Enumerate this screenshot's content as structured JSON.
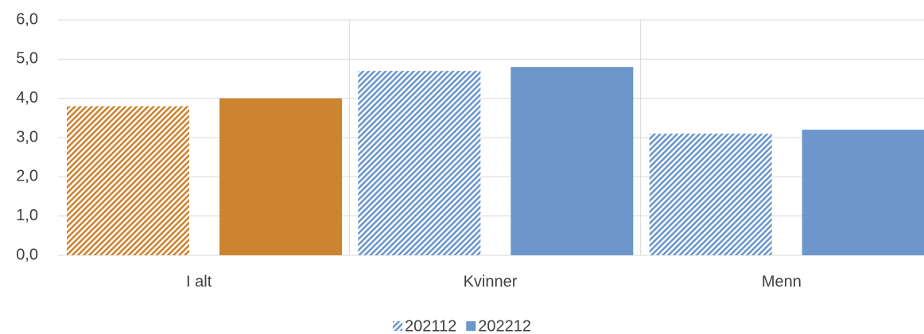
{
  "chart_data": {
    "type": "bar",
    "categories": [
      "I alt",
      "Kvinner",
      "Menn"
    ],
    "category_colors": [
      "#cc8431",
      "#6c96cc",
      "#6c96cc"
    ],
    "series": [
      {
        "name": "202112",
        "color": "#6c96cc",
        "pattern": "hatch",
        "values": [
          3.8,
          4.7,
          3.1
        ]
      },
      {
        "name": "202212",
        "color": "#6c96cc",
        "pattern": "solid",
        "values": [
          4.0,
          4.8,
          3.2
        ]
      }
    ],
    "ylim": [
      0,
      6
    ],
    "yticks": [
      {
        "value": 0,
        "label": "0,0"
      },
      {
        "value": 1,
        "label": "1,0"
      },
      {
        "value": 2,
        "label": "2,0"
      },
      {
        "value": 3,
        "label": "3,0"
      },
      {
        "value": 4,
        "label": "4,0"
      },
      {
        "value": 5,
        "label": "5,0"
      },
      {
        "value": 6,
        "label": "6,0"
      }
    ],
    "grid": true,
    "legend": "bottom"
  }
}
